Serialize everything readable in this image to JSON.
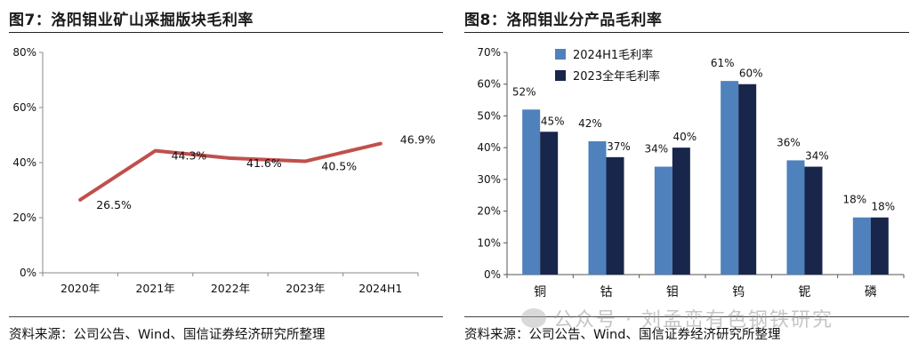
{
  "left_panel": {
    "title": "图7：洛阳钼业矿山采掘版块毛利率",
    "source": "资料来源：公司公告、Wind、国信证券经济研究所整理"
  },
  "right_panel": {
    "title": "图8：洛阳钼业分产品毛利率",
    "source": "资料来源：公司公告、Wind、国信证券经济研究所整理"
  },
  "watermark": {
    "text": "公众号 · 刘孟峦有色钢铁研究"
  },
  "colors": {
    "line": "#c0504d",
    "bar1": "#4f81bd",
    "bar2": "#17264a",
    "axis": "#888888"
  },
  "chart_data": [
    {
      "type": "line",
      "title": "图7：洛阳钼业矿山采掘版块毛利率",
      "categories": [
        "2020年",
        "2021年",
        "2022年",
        "2023年",
        "2024H1"
      ],
      "values": [
        26.5,
        44.3,
        41.6,
        40.5,
        46.9
      ],
      "value_labels": [
        "26.5%",
        "44.3%",
        "41.6%",
        "40.5%",
        "46.9%"
      ],
      "yticks": [
        "0%",
        "20%",
        "40%",
        "60%",
        "80%"
      ],
      "ylim": [
        0,
        80
      ],
      "xlabel": "",
      "ylabel": ""
    },
    {
      "type": "bar",
      "title": "图8：洛阳钼业分产品毛利率",
      "categories": [
        "铜",
        "钴",
        "钼",
        "钨",
        "铌",
        "磷"
      ],
      "series": [
        {
          "name": "2024H1毛利率",
          "values": [
            52,
            42,
            34,
            61,
            36,
            18
          ],
          "labels": [
            "52%",
            "42%",
            "34%",
            "61%",
            "36%",
            "18%"
          ]
        },
        {
          "name": "2023全年毛利率",
          "values": [
            45,
            37,
            40,
            60,
            34,
            18
          ],
          "labels": [
            "45%",
            "37%",
            "40%",
            "60%",
            "34%",
            "18%"
          ]
        }
      ],
      "yticks": [
        "0%",
        "10%",
        "20%",
        "30%",
        "40%",
        "50%",
        "60%",
        "70%"
      ],
      "ylim": [
        0,
        70
      ],
      "legend": "top-left"
    }
  ]
}
